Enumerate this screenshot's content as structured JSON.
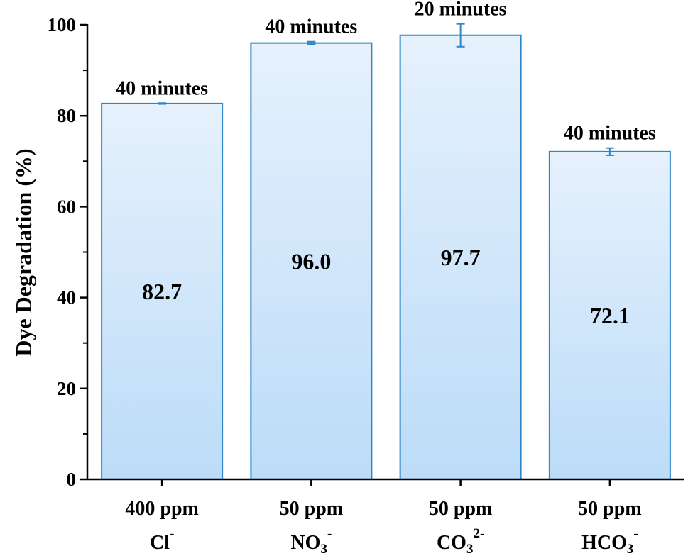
{
  "chart_data": {
    "type": "bar",
    "ylabel": "Dye Degradation (%)",
    "xlabel": "",
    "ylim": [
      0,
      100
    ],
    "yticks": [
      0,
      20,
      40,
      60,
      80,
      100
    ],
    "categories": [
      {
        "line1": "400 ppm",
        "ion": "Cl",
        "sub": "",
        "sup": "-"
      },
      {
        "line1": "50 ppm",
        "ion": "NO",
        "sub": "3",
        "sup": "-"
      },
      {
        "line1": "50 ppm",
        "ion": "CO",
        "sub": "3",
        "sup": "2-"
      },
      {
        "line1": "50 ppm",
        "ion": "HCO",
        "sub": "3",
        "sup": "-"
      }
    ],
    "values": [
      82.7,
      96.0,
      97.7,
      72.1
    ],
    "value_labels": [
      "82.7",
      "96.0",
      "97.7",
      "72.1"
    ],
    "errors": [
      0.1,
      0.3,
      2.5,
      0.8
    ],
    "time_labels": [
      "40 minutes",
      "40 minutes",
      "20 minutes",
      "40 minutes"
    ],
    "colors": {
      "bar_top": "#e6f1fc",
      "bar_bottom": "#bcdcf8",
      "bar_edge": "#2e86c9",
      "axis": "#000000"
    }
  }
}
